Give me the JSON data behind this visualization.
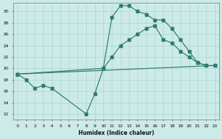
{
  "xlabel": "Humidex (Indice chaleur)",
  "bg_color": "#cceae8",
  "line_color": "#2d7d6e",
  "grid_color": "#aad4cf",
  "xlim": [
    -0.5,
    23.5
  ],
  "ylim": [
    11,
    31.5
  ],
  "yticks": [
    12,
    14,
    16,
    18,
    20,
    22,
    24,
    26,
    28,
    30
  ],
  "xticks": [
    0,
    1,
    2,
    3,
    4,
    5,
    6,
    7,
    8,
    9,
    10,
    11,
    12,
    13,
    14,
    15,
    16,
    17,
    18,
    19,
    20,
    21,
    22,
    23
  ],
  "line1_x": [
    0,
    1,
    2,
    3,
    4,
    8,
    9,
    10,
    11,
    12,
    13,
    14,
    15,
    16,
    17,
    18,
    19,
    20,
    21,
    22
  ],
  "line1_y": [
    19,
    18,
    16.5,
    17,
    16.5,
    12,
    15.5,
    20,
    29,
    31,
    31,
    30,
    29.5,
    28.5,
    28.5,
    27,
    25,
    23,
    21,
    20.5
  ],
  "line2_x": [
    0,
    10,
    11,
    12,
    13,
    14,
    15,
    16,
    17,
    18,
    19,
    20,
    21,
    22,
    23
  ],
  "line2_y": [
    19,
    20,
    22,
    24,
    25,
    26,
    27,
    27.5,
    25,
    24.5,
    23,
    22,
    21,
    20.5,
    20.5
  ],
  "line3_x": [
    0,
    23
  ],
  "line3_y": [
    19,
    20.5
  ]
}
